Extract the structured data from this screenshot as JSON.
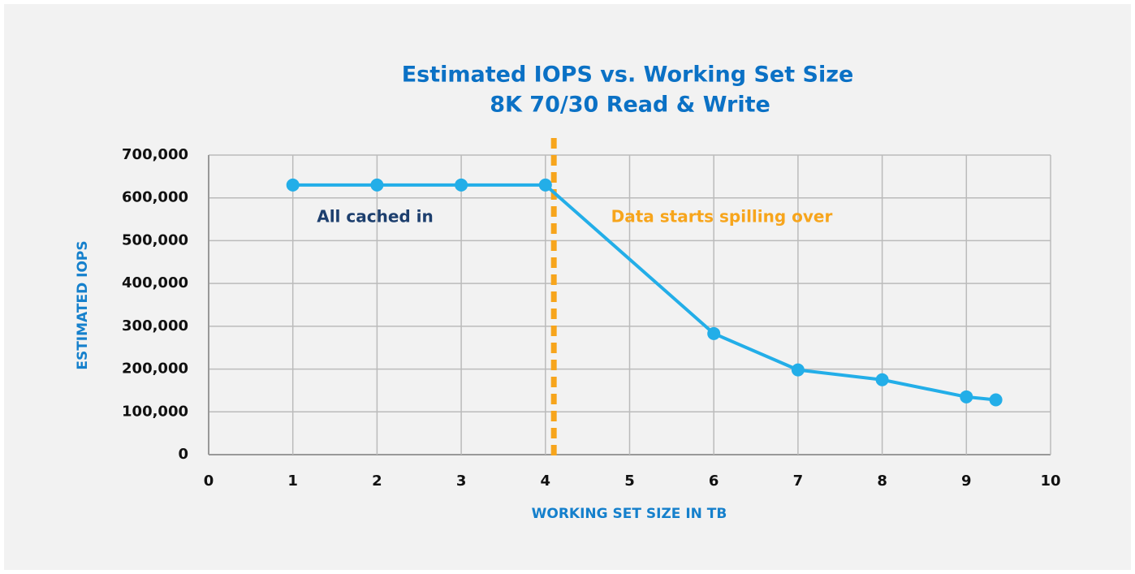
{
  "chart_data": {
    "type": "line",
    "title": "Estimated IOPS vs. Working Set Size",
    "subtitle": "8K 70/30 Read & Write",
    "x_label": "WORKING SET SIZE IN TB",
    "y_label": "ESTIMATED IOPS",
    "x": [
      1,
      2,
      3,
      4,
      6,
      7,
      8,
      9,
      9.35
    ],
    "series": [
      {
        "name": "Estimated IOPS",
        "color": "#23aee8",
        "values": [
          630000,
          630000,
          630000,
          630000,
          283000,
          198000,
          175000,
          135000,
          128000
        ]
      }
    ],
    "xlim": [
      0,
      10
    ],
    "xticks": [
      0,
      1,
      2,
      3,
      4,
      5,
      6,
      7,
      8,
      9,
      10
    ],
    "ylim": [
      0,
      700000
    ],
    "yticks": [
      0,
      {
        "value": 100000,
        "label": "100,000"
      },
      {
        "value": 200000,
        "label": "200,000"
      },
      {
        "value": 300000,
        "label": "300,000"
      },
      {
        "value": 400000,
        "label": "400,000"
      },
      {
        "value": 500000,
        "label": "500,000"
      },
      {
        "value": 600000,
        "label": "600,000"
      },
      {
        "value": 700000,
        "label": "700,000"
      }
    ],
    "grid": true,
    "threshold": {
      "x": 4.1,
      "color": "#f7a51c"
    },
    "annotations": [
      {
        "text": "All cached in",
        "color": "#1d3f6e"
      },
      {
        "text": "Data starts spilling over",
        "color": "#f7a51c"
      }
    ]
  }
}
